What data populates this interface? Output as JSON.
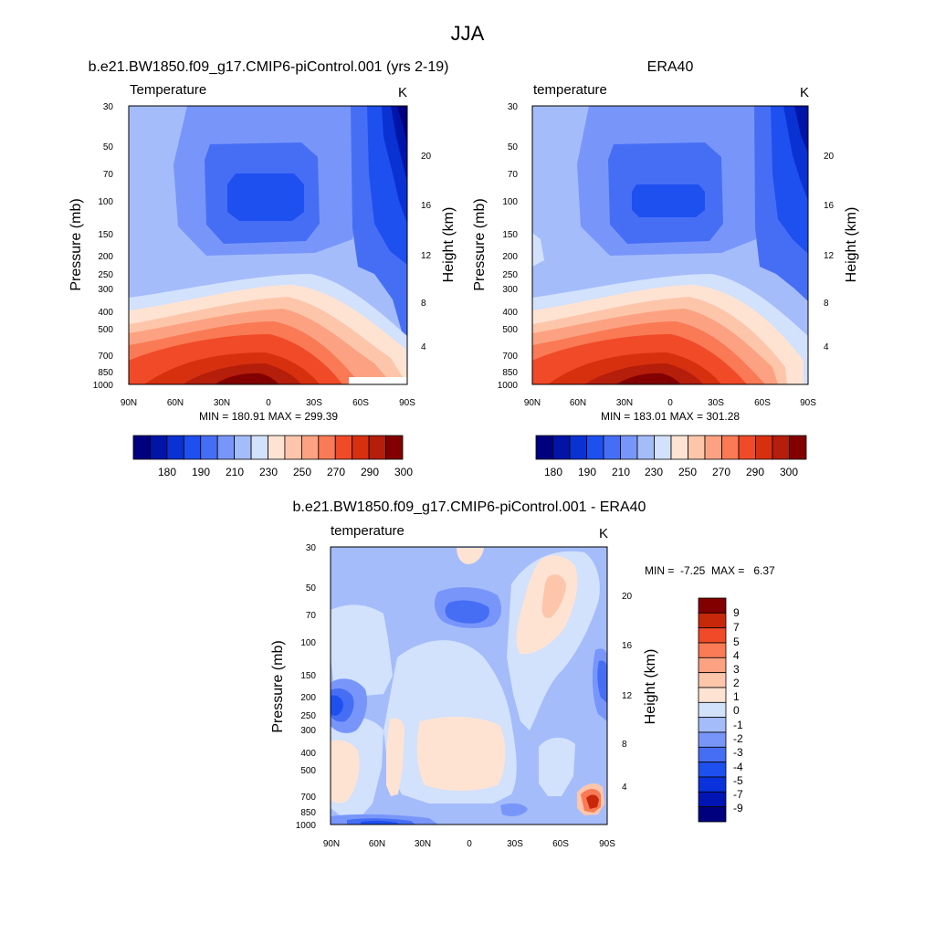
{
  "figure_title": "JJA",
  "colors": {
    "temp_levels": [
      "#00007f",
      "#0014a8",
      "#0a32d2",
      "#1e50f0",
      "#466ef5",
      "#7896fa",
      "#a5bcfa",
      "#d2e1fc",
      "#fee3d3",
      "#fdc6ab",
      "#fca282",
      "#f97a55",
      "#f04a28",
      "#d7300f",
      "#b41e0a",
      "#820000"
    ],
    "diff_levels": [
      "#00007f",
      "#0014b4",
      "#0a32dc",
      "#1e50f0",
      "#466ef5",
      "#7896fa",
      "#a5bcfa",
      "#d2e1fc",
      "#fee3d3",
      "#fdc6ab",
      "#fca282",
      "#f97a55",
      "#f04a28",
      "#c8280a",
      "#820000"
    ]
  },
  "chart_data": [
    {
      "type": "contour",
      "id": "model",
      "title": "b.e21.BW1850.f09_g17.CMIP6-piControl.001 (yrs 2-19)",
      "left_label": "Temperature",
      "units": "K",
      "ylabel": "Pressure (mb)",
      "ylabel_right": "Height (km)",
      "xticks": [
        "90N",
        "60N",
        "30N",
        "0",
        "30S",
        "60S",
        "90S"
      ],
      "yticks": [
        "30",
        "50",
        "70",
        "100",
        "150",
        "200",
        "250",
        "300",
        "400",
        "500",
        "700",
        "850",
        "1000"
      ],
      "yticks_right": [
        "20",
        "16",
        "12",
        "8",
        "4"
      ],
      "min_max": "MIN = 180.91  MAX = 299.39",
      "colorbar_labels": [
        "180",
        "190",
        "210",
        "230",
        "250",
        "270",
        "290",
        "300"
      ]
    },
    {
      "type": "contour",
      "id": "obs",
      "title": "ERA40",
      "left_label": "temperature",
      "units": "K",
      "ylabel": "Pressure (mb)",
      "ylabel_right": "Height (km)",
      "xticks": [
        "90N",
        "60N",
        "30N",
        "0",
        "30S",
        "60S",
        "90S"
      ],
      "yticks": [
        "30",
        "50",
        "70",
        "100",
        "150",
        "200",
        "250",
        "300",
        "400",
        "500",
        "700",
        "850",
        "1000"
      ],
      "yticks_right": [
        "20",
        "16",
        "12",
        "8",
        "4"
      ],
      "min_max": "MIN = 183.01  MAX = 301.28",
      "colorbar_labels": [
        "180",
        "190",
        "210",
        "230",
        "250",
        "270",
        "290",
        "300"
      ]
    },
    {
      "type": "contour",
      "id": "diff",
      "title": "b.e21.BW1850.f09_g17.CMIP6-piControl.001 - ERA40",
      "left_label": "temperature",
      "units": "K",
      "ylabel": "Pressure (mb)",
      "ylabel_right": "Height (km)",
      "xticks": [
        "90N",
        "60N",
        "30N",
        "0",
        "30S",
        "60S",
        "90S"
      ],
      "yticks": [
        "30",
        "50",
        "70",
        "100",
        "150",
        "200",
        "250",
        "300",
        "400",
        "500",
        "700",
        "850",
        "1000"
      ],
      "yticks_right": [
        "20",
        "16",
        "12",
        "8",
        "4"
      ],
      "min_max": "MIN =  -7.25  MAX =   6.37",
      "colorbar_labels": [
        "9",
        "7",
        "5",
        "4",
        "3",
        "2",
        "1",
        "0",
        "-1",
        "-2",
        "-3",
        "-4",
        "-5",
        "-7",
        "-9"
      ]
    }
  ]
}
